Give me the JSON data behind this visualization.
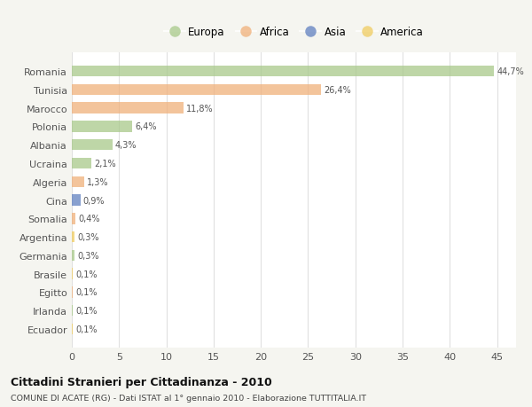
{
  "countries": [
    "Romania",
    "Tunisia",
    "Marocco",
    "Polonia",
    "Albania",
    "Ucraina",
    "Algeria",
    "Cina",
    "Somalia",
    "Argentina",
    "Germania",
    "Brasile",
    "Egitto",
    "Irlanda",
    "Ecuador"
  ],
  "values": [
    44.7,
    26.4,
    11.8,
    6.4,
    4.3,
    2.1,
    1.3,
    0.9,
    0.4,
    0.3,
    0.3,
    0.1,
    0.1,
    0.1,
    0.1
  ],
  "labels": [
    "44,7%",
    "26,4%",
    "11,8%",
    "6,4%",
    "4,3%",
    "2,1%",
    "1,3%",
    "0,9%",
    "0,4%",
    "0,3%",
    "0,3%",
    "0,1%",
    "0,1%",
    "0,1%",
    "0,1%"
  ],
  "continents": [
    "Europa",
    "Africa",
    "Africa",
    "Europa",
    "Europa",
    "Europa",
    "Africa",
    "Asia",
    "Africa",
    "America",
    "Europa",
    "America",
    "Africa",
    "Europa",
    "America"
  ],
  "continent_colors": {
    "Europa": "#a8c98a",
    "Africa": "#f0b07a",
    "Asia": "#6080c0",
    "America": "#f0cc60"
  },
  "legend_order": [
    "Europa",
    "Africa",
    "Asia",
    "America"
  ],
  "background_color": "#f5f5f0",
  "plot_bg_color": "#ffffff",
  "grid_color": "#e0e0e0",
  "title": "Cittadini Stranieri per Cittadinanza - 2010",
  "subtitle": "COMUNE DI ACATE (RG) - Dati ISTAT al 1° gennaio 2010 - Elaborazione TUTTITALIA.IT",
  "xlim": [
    0,
    47
  ],
  "xticks": [
    0,
    5,
    10,
    15,
    20,
    25,
    30,
    35,
    40,
    45
  ],
  "bar_alpha": 0.75
}
